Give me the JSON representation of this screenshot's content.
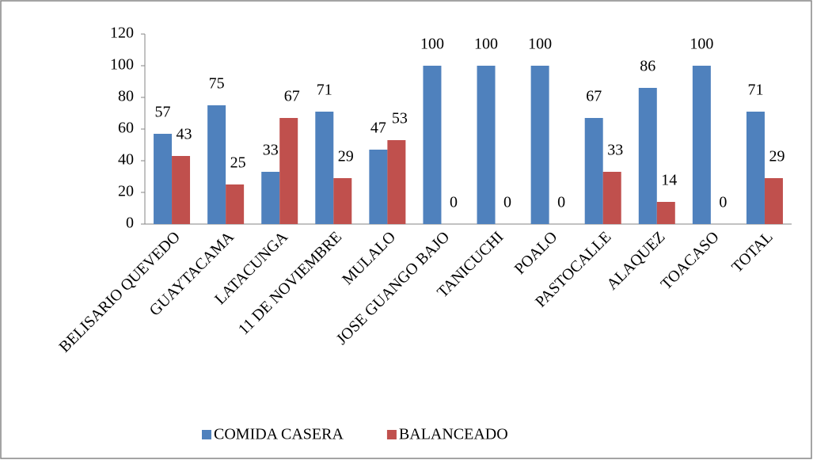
{
  "chart_data": {
    "type": "bar",
    "categories": [
      "BELISARIO QUEVEDO",
      "GUAYTACAMA",
      "LATACUNGA",
      "11 DE NOVIEMBRE",
      "MULALO",
      "JOSE GUANGO BAJO",
      "TANICUCHI",
      "POALO",
      "PASTOCALLE",
      "ALAQUEZ",
      "TOACASO",
      "TOTAL"
    ],
    "series": [
      {
        "name": "COMIDA CASERA",
        "color": "#4f81bd",
        "values": [
          57,
          75,
          33,
          71,
          47,
          100,
          100,
          100,
          67,
          86,
          100,
          71
        ]
      },
      {
        "name": "BALANCEADO",
        "color": "#c0504d",
        "values": [
          43,
          25,
          67,
          29,
          53,
          0,
          0,
          0,
          33,
          14,
          0,
          29
        ]
      }
    ],
    "ylim": [
      0,
      120
    ],
    "yticks": [
      0,
      20,
      40,
      60,
      80,
      100,
      120
    ],
    "grid": false,
    "legend": "bottom"
  }
}
